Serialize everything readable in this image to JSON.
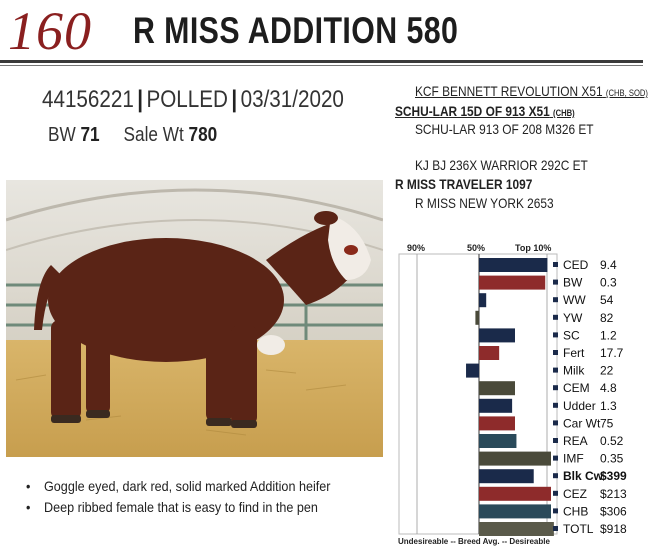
{
  "header": {
    "lot": "160",
    "name": "R  MISS ADDITION 580"
  },
  "info": {
    "reg": "44156221",
    "polled": "POLLED",
    "date": "03/31/2020",
    "bw_label": "BW",
    "bw_value": "71",
    "sale_label": "Sale Wt",
    "sale_value": "780"
  },
  "pedigree": {
    "sire_sire": "KCF BENNETT REVOLUTION X51",
    "sire_sire_note": "(CHB, SOD)",
    "sire": "SCHU-LAR 15D OF 913 X51",
    "sire_note": "(CHB)",
    "sire_dam": "SCHU-LAR 913 OF 208 M326 ET",
    "dam_sire": "KJ BJ 236X WARRIOR 292C ET",
    "dam": "R MISS TRAVELER 1097",
    "dam_dam": "R MISS NEW YORK 2653"
  },
  "bullets": [
    "Goggle eyed, dark red, solid marked Addition heifer",
    "Deep ribbed female that is easy to find in the pen"
  ],
  "chart_data": {
    "type": "bar",
    "axis_labels": [
      "90%",
      "50%",
      "Top 10%"
    ],
    "footer": "Undesireable -- Breed Avg. --  Desireable",
    "rows": [
      {
        "trait": "CED",
        "value": "9.4",
        "pct": 0.95,
        "color": "#1a2a4a",
        "bold": false
      },
      {
        "trait": "BW",
        "value": "0.3",
        "pct": 0.92,
        "color": "#8e2b2b",
        "bold": false
      },
      {
        "trait": "WW",
        "value": "54",
        "pct": 0.1,
        "color": "#1a2a4a",
        "bold": false
      },
      {
        "trait": "YW",
        "value": "82",
        "pct": -0.05,
        "color": "#4a4a3a",
        "bold": false
      },
      {
        "trait": "SC",
        "value": "1.2",
        "pct": 0.5,
        "color": "#1a2a4a",
        "bold": false
      },
      {
        "trait": "Fert",
        "value": "17.7",
        "pct": 0.28,
        "color": "#8e2b2b",
        "bold": false
      },
      {
        "trait": "Milk",
        "value": "22",
        "pct": -0.18,
        "color": "#1a2a4a",
        "bold": false
      },
      {
        "trait": "CEM",
        "value": "4.8",
        "pct": 0.5,
        "color": "#4a4a3a",
        "bold": false
      },
      {
        "trait": "Udder",
        "value": "1.3",
        "pct": 0.46,
        "color": "#1a2a4a",
        "bold": false
      },
      {
        "trait": "Car Wt",
        "value": "75",
        "pct": 0.5,
        "color": "#8e2b2b",
        "bold": false
      },
      {
        "trait": "REA",
        "value": "0.52",
        "pct": 0.52,
        "color": "#2a4a5a",
        "bold": false
      },
      {
        "trait": "IMF",
        "value": "0.35",
        "pct": 1.0,
        "color": "#4a4a3a",
        "bold": false
      },
      {
        "trait": "Blk Cw",
        "value": "$399",
        "pct": 0.76,
        "color": "#1a2a4a",
        "bold": true
      },
      {
        "trait": "CEZ",
        "value": "$213",
        "pct": 1.0,
        "color": "#8e2b2b",
        "bold": false
      },
      {
        "trait": "CHB",
        "value": "$306",
        "pct": 1.0,
        "color": "#2a4a5a",
        "bold": false
      },
      {
        "trait": "TOTL",
        "value": "$918",
        "pct": 1.04,
        "color": "#5a5a4a",
        "bold": false
      }
    ]
  }
}
